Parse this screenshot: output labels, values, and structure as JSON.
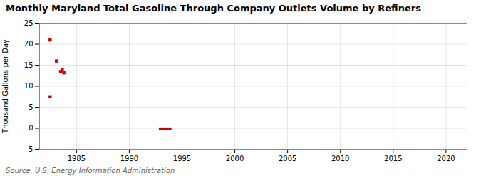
{
  "chart_data": {
    "type": "scatter",
    "title": "Monthly Maryland Total Gasoline Through Company Outlets Volume by Refiners",
    "ylabel": "Thousand Gallons per Day",
    "source": "Source: U.S. Energy Information Administration",
    "x": [
      1982.5,
      1983.1,
      1982.5,
      1983.5,
      1983.65,
      1983.8
    ],
    "y": [
      21.0,
      16.0,
      7.5,
      13.5,
      14.0,
      13.2
    ],
    "segments": [
      {
        "x_start": 1992.8,
        "x_end": 1994.0,
        "y": -0.15
      }
    ],
    "color": "#cc0000",
    "marker": "square",
    "xlim": [
      1981.5,
      2022
    ],
    "xticks": [
      1985,
      1990,
      1995,
      2000,
      2005,
      2010,
      2015,
      2020
    ],
    "ylim": [
      -5,
      25
    ],
    "yticks": [
      -5,
      0,
      5,
      10,
      15,
      20,
      25
    ],
    "grid": true
  }
}
